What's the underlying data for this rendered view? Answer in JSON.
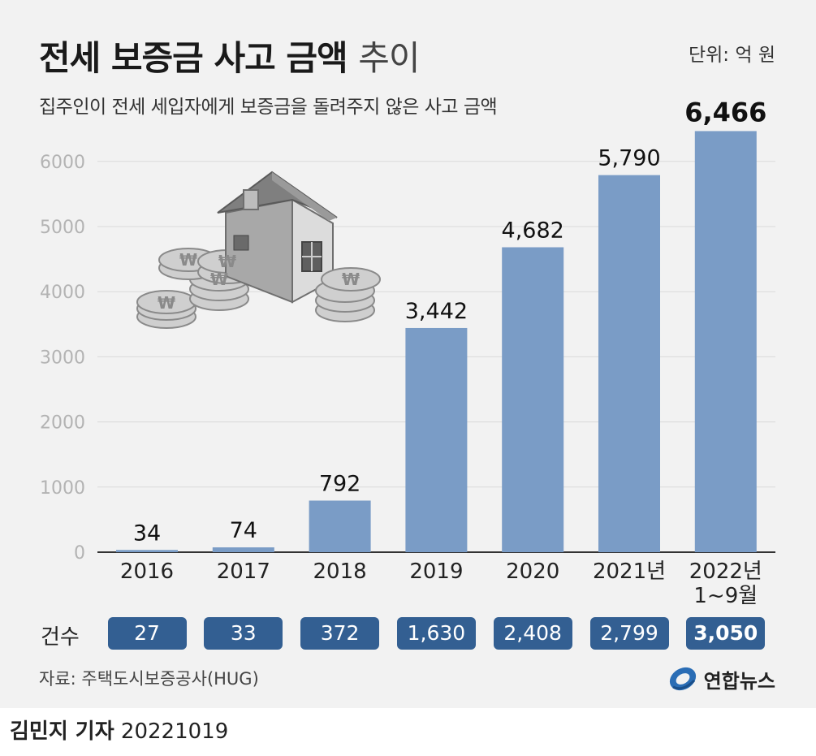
{
  "header": {
    "title": "전세 보증금 사고 금액",
    "title_suffix": "추이",
    "unit": "단위: 억 원",
    "subtitle": "집주인이 전세 세입자에게 보증금을 돌려주지 않은 사고 금액"
  },
  "illustration": {
    "icon": "house-with-won-coins-icon"
  },
  "chart_data": {
    "type": "bar",
    "categories": [
      "2016",
      "2017",
      "2018",
      "2019",
      "2020",
      "2021년",
      "2022년\n1~9월"
    ],
    "values": [
      34,
      74,
      792,
      3442,
      4682,
      5790,
      6466
    ],
    "value_labels": [
      "34",
      "74",
      "792",
      "3,442",
      "4,682",
      "5,790",
      "6,466"
    ],
    "ylim": [
      0,
      6800
    ],
    "yticks": [
      0,
      1000,
      2000,
      3000,
      4000,
      5000,
      6000
    ],
    "grid": true,
    "highlight_index": 6,
    "bar_color": "#7a9cc6"
  },
  "counts": {
    "label": "건수",
    "values": [
      "27",
      "33",
      "372",
      "1,630",
      "2,408",
      "2,799",
      "3,050"
    ],
    "highlight_index": 6,
    "box_color": "#335f92"
  },
  "footer": {
    "source": "자료: 주택도시보증공사(HUG)",
    "logo": "연합뉴스",
    "logo_icon": "yonhap-logo-icon"
  },
  "byline": {
    "name": "김민지 기자",
    "date": "20221019"
  }
}
